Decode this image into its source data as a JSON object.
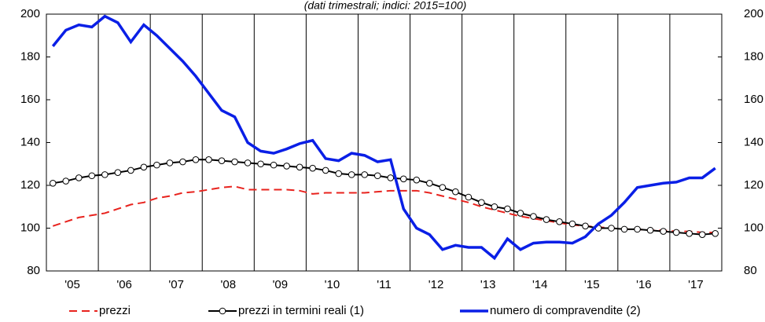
{
  "chart_data": {
    "type": "line",
    "title": "(dati trimestrali; indici: 2015=100)",
    "x": [
      2005.125,
      2005.375,
      2005.625,
      2005.875,
      2006.125,
      2006.375,
      2006.625,
      2006.875,
      2007.125,
      2007.375,
      2007.625,
      2007.875,
      2008.125,
      2008.375,
      2008.625,
      2008.875,
      2009.125,
      2009.375,
      2009.625,
      2009.875,
      2010.125,
      2010.375,
      2010.625,
      2010.875,
      2011.125,
      2011.375,
      2011.625,
      2011.875,
      2012.125,
      2012.375,
      2012.625,
      2012.875,
      2013.125,
      2013.375,
      2013.625,
      2013.875,
      2014.125,
      2014.375,
      2014.625,
      2014.875,
      2015.125,
      2015.375,
      2015.625,
      2015.875,
      2016.125,
      2016.375,
      2016.625,
      2016.875,
      2017.125,
      2017.375,
      2017.625,
      2017.875
    ],
    "xlim": [
      2005,
      2018
    ],
    "xticks": [
      {
        "value": 2005.5,
        "label": "'05"
      },
      {
        "value": 2006.5,
        "label": "'06"
      },
      {
        "value": 2007.5,
        "label": "'07"
      },
      {
        "value": 2008.5,
        "label": "'08"
      },
      {
        "value": 2009.5,
        "label": "'09"
      },
      {
        "value": 2010.5,
        "label": "'10"
      },
      {
        "value": 2011.5,
        "label": "'11"
      },
      {
        "value": 2012.5,
        "label": "'12"
      },
      {
        "value": 2013.5,
        "label": "'13"
      },
      {
        "value": 2014.5,
        "label": "'14"
      },
      {
        "value": 2015.5,
        "label": "'15"
      },
      {
        "value": 2016.5,
        "label": "'16"
      },
      {
        "value": 2017.5,
        "label": "'17"
      }
    ],
    "ylim": [
      80,
      200
    ],
    "yticks": [
      80,
      100,
      120,
      140,
      160,
      180,
      200
    ],
    "y2lim": [
      80,
      200
    ],
    "y2ticks": [
      80,
      100,
      120,
      140,
      160,
      180,
      200
    ],
    "series": [
      {
        "name": "prezzi",
        "color": "#e8231e",
        "style": "dashed",
        "values": [
          101,
          103,
          105,
          106,
          107,
          109,
          111,
          112,
          114,
          115,
          116.5,
          117,
          118,
          119,
          119.5,
          118,
          118,
          118,
          118,
          117.5,
          116,
          116.5,
          116.5,
          116.5,
          116.5,
          117,
          117.5,
          117.5,
          117.5,
          116.5,
          115,
          113.5,
          112,
          110,
          108.5,
          107,
          105.5,
          104.5,
          103.5,
          102.5,
          101.5,
          101,
          100.5,
          100,
          99.5,
          99.5,
          99,
          99,
          98.5,
          98.5,
          98,
          98
        ]
      },
      {
        "name": "prezzi in termini reali (1)",
        "color": "#000000",
        "style": "markers",
        "values": [
          121,
          122,
          123.5,
          124.5,
          125,
          126,
          127,
          128.5,
          129.5,
          130.5,
          131,
          132,
          132,
          131.5,
          131,
          130.5,
          130,
          129.5,
          129,
          128.5,
          128,
          127,
          125.5,
          125,
          125,
          124.5,
          123.5,
          123,
          122.5,
          121,
          119,
          117,
          114.5,
          112,
          110,
          109,
          107,
          105.5,
          104,
          103,
          102,
          101,
          100,
          100,
          99.5,
          99.5,
          99,
          98.5,
          98,
          97.5,
          97,
          97.5
        ]
      },
      {
        "name": "numero di compravendite (2)",
        "color": "#0a1fe6",
        "style": "solid",
        "axis": "y2",
        "values": [
          185,
          192.5,
          195,
          194,
          199,
          196,
          187,
          195,
          190,
          184,
          178,
          171,
          163,
          155,
          152,
          140,
          136,
          135,
          137,
          139.5,
          141,
          132.5,
          131.5,
          135,
          134,
          131,
          132,
          109,
          100,
          97,
          90,
          92,
          91,
          91,
          86,
          95,
          90,
          93,
          93.5,
          93.5,
          93,
          96,
          102,
          106,
          112,
          119,
          120,
          121,
          121.5,
          123.5,
          123.5,
          128
        ]
      }
    ]
  }
}
